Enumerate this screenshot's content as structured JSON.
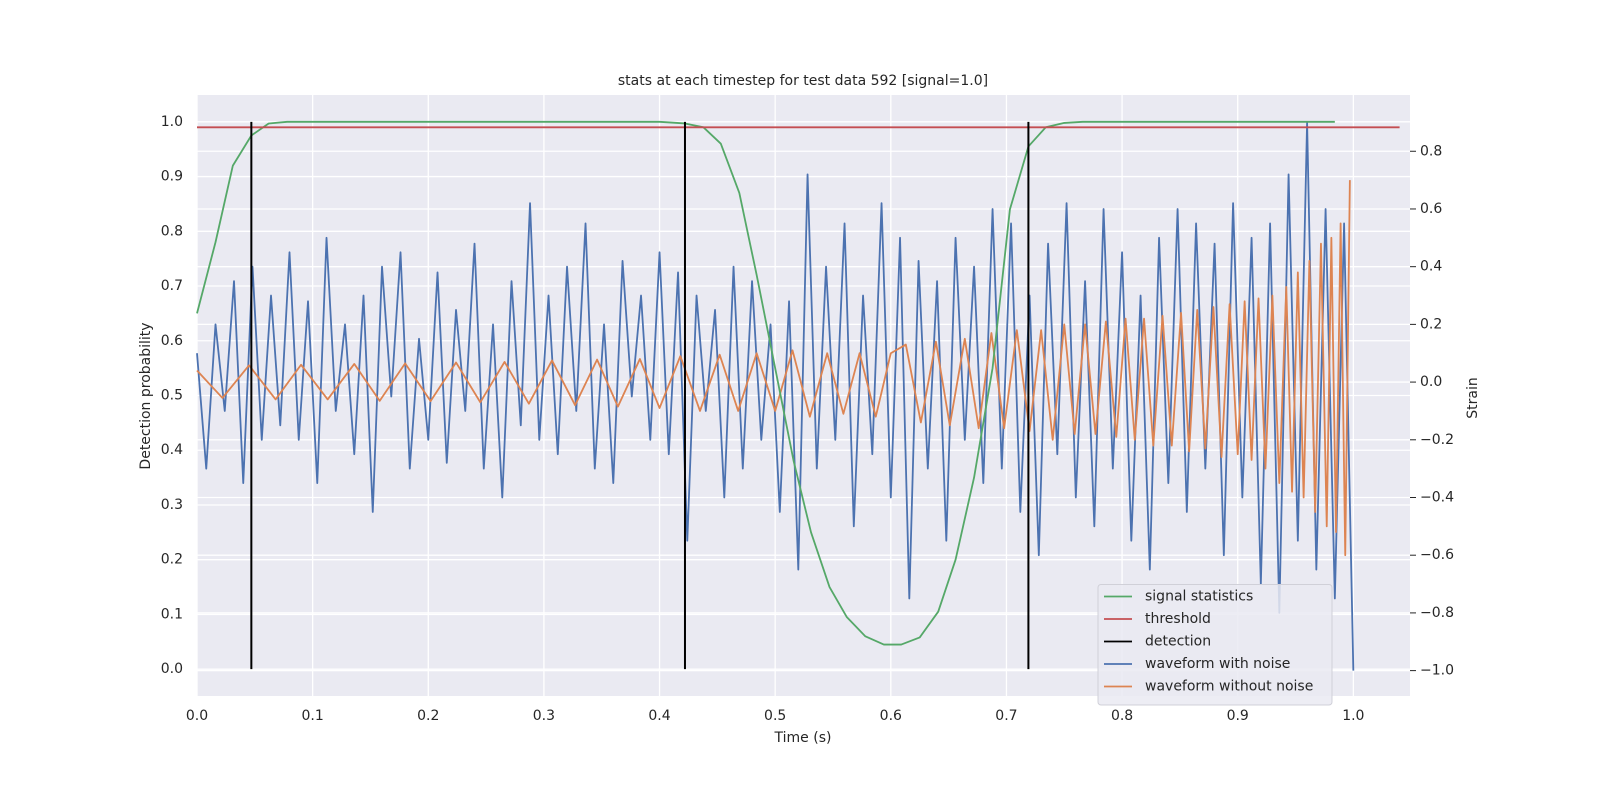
{
  "chart_data": {
    "type": "line",
    "title": "stats at each timestep for test data 592 [signal=1.0]",
    "xlabel": "Time (s)",
    "ylabel": "Detection probability",
    "y2label": "Strain",
    "xlim": [
      0,
      1.049
    ],
    "ylim": [
      -0.049,
      1.049
    ],
    "y2lim": [
      -1.088,
      0.995
    ],
    "xticks": [
      {
        "value": 0,
        "label": "0.0"
      },
      {
        "value": 0.1,
        "label": "0.1"
      },
      {
        "value": 0.2,
        "label": "0.2"
      },
      {
        "value": 0.3,
        "label": "0.3"
      },
      {
        "value": 0.4,
        "label": "0.4"
      },
      {
        "value": 0.5,
        "label": "0.5"
      },
      {
        "value": 0.6,
        "label": "0.6"
      },
      {
        "value": 0.7,
        "label": "0.7"
      },
      {
        "value": 0.8,
        "label": "0.8"
      },
      {
        "value": 0.9,
        "label": "0.9"
      },
      {
        "value": 1,
        "label": "1.0"
      }
    ],
    "yticks": [
      {
        "value": 0,
        "label": "0.0"
      },
      {
        "value": 0.1,
        "label": "0.1"
      },
      {
        "value": 0.2,
        "label": "0.2"
      },
      {
        "value": 0.3,
        "label": "0.3"
      },
      {
        "value": 0.4,
        "label": "0.4"
      },
      {
        "value": 0.5,
        "label": "0.5"
      },
      {
        "value": 0.6,
        "label": "0.6"
      },
      {
        "value": 0.7,
        "label": "0.7"
      },
      {
        "value": 0.8,
        "label": "0.8"
      },
      {
        "value": 0.9,
        "label": "0.9"
      },
      {
        "value": 1,
        "label": "1.0"
      }
    ],
    "y2ticks": [
      {
        "value": -1,
        "label": "−1.0"
      },
      {
        "value": -0.8,
        "label": "−0.8"
      },
      {
        "value": -0.6,
        "label": "−0.6"
      },
      {
        "value": -0.4,
        "label": "−0.4"
      },
      {
        "value": -0.2,
        "label": "−0.2"
      },
      {
        "value": 0,
        "label": "0.0"
      },
      {
        "value": 0.2,
        "label": "0.2"
      },
      {
        "value": 0.4,
        "label": "0.4"
      },
      {
        "value": 0.6,
        "label": "0.6"
      },
      {
        "value": 0.8,
        "label": "0.8"
      }
    ],
    "grid": true,
    "legend": "lower right",
    "series": [
      {
        "name": "signal statistics",
        "color": "#55a868",
        "x": [
          0,
          0.016,
          0.031,
          0.047,
          0.062,
          0.078,
          0.4,
          0.422,
          0.438,
          0.453,
          0.469,
          0.484,
          0.5,
          0.516,
          0.531,
          0.547,
          0.562,
          0.578,
          0.594,
          0.609,
          0.625,
          0.641,
          0.656,
          0.672,
          0.688,
          0.703,
          0.719,
          0.734,
          0.75,
          0.766,
          0.984
        ],
        "values": [
          0.65,
          0.78,
          0.92,
          0.975,
          0.997,
          1.0,
          1.0,
          0.997,
          0.99,
          0.96,
          0.87,
          0.72,
          0.55,
          0.38,
          0.25,
          0.15,
          0.095,
          0.06,
          0.045,
          0.045,
          0.058,
          0.105,
          0.2,
          0.35,
          0.55,
          0.84,
          0.955,
          0.99,
          0.998,
          1.0,
          1.0
        ]
      },
      {
        "name": "threshold",
        "color": "#c44e52",
        "x": [
          0,
          1.04
        ],
        "values": [
          0.99,
          0.99
        ]
      },
      {
        "name": "detection",
        "color": "#000000",
        "style": "vlines",
        "x": [
          0.047,
          0.422,
          0.719
        ],
        "ymin": 0,
        "ymax": 1
      },
      {
        "name": "waveform with noise",
        "color": "#4c72b0",
        "axis": "y2",
        "x": [
          0,
          0.008,
          0.016,
          0.024,
          0.032,
          0.04,
          0.048,
          0.056,
          0.064,
          0.072,
          0.08,
          0.088,
          0.096,
          0.104,
          0.112,
          0.12,
          0.128,
          0.136,
          0.144,
          0.152,
          0.16,
          0.168,
          0.176,
          0.184,
          0.192,
          0.2,
          0.208,
          0.216,
          0.224,
          0.232,
          0.24,
          0.248,
          0.256,
          0.264,
          0.272,
          0.28,
          0.288,
          0.296,
          0.304,
          0.312,
          0.32,
          0.328,
          0.336,
          0.344,
          0.352,
          0.36,
          0.368,
          0.376,
          0.384,
          0.392,
          0.4,
          0.408,
          0.416,
          0.424,
          0.432,
          0.44,
          0.448,
          0.456,
          0.464,
          0.472,
          0.48,
          0.488,
          0.496,
          0.504,
          0.512,
          0.52,
          0.528,
          0.536,
          0.544,
          0.552,
          0.56,
          0.568,
          0.576,
          0.584,
          0.592,
          0.6,
          0.608,
          0.616,
          0.624,
          0.632,
          0.64,
          0.648,
          0.656,
          0.664,
          0.672,
          0.68,
          0.688,
          0.696,
          0.704,
          0.712,
          0.72,
          0.728,
          0.736,
          0.744,
          0.752,
          0.76,
          0.768,
          0.776,
          0.784,
          0.792,
          0.8,
          0.808,
          0.816,
          0.824,
          0.832,
          0.84,
          0.848,
          0.856,
          0.864,
          0.872,
          0.88,
          0.888,
          0.896,
          0.904,
          0.912,
          0.92,
          0.928,
          0.936,
          0.944,
          0.952,
          0.96,
          0.968,
          0.976,
          0.984,
          0.992,
          1.0
        ],
        "values": [
          0.1,
          -0.3,
          0.2,
          -0.1,
          0.35,
          -0.35,
          0.4,
          -0.2,
          0.3,
          -0.15,
          0.45,
          -0.2,
          0.28,
          -0.35,
          0.5,
          -0.1,
          0.2,
          -0.25,
          0.3,
          -0.45,
          0.4,
          -0.05,
          0.45,
          -0.3,
          0.15,
          -0.2,
          0.38,
          -0.28,
          0.25,
          -0.1,
          0.48,
          -0.3,
          0.2,
          -0.4,
          0.35,
          -0.15,
          0.62,
          -0.2,
          0.3,
          -0.25,
          0.4,
          -0.1,
          0.55,
          -0.3,
          0.2,
          -0.35,
          0.42,
          -0.05,
          0.3,
          -0.2,
          0.45,
          -0.25,
          0.38,
          -0.55,
          0.3,
          -0.1,
          0.25,
          -0.4,
          0.4,
          -0.3,
          0.35,
          -0.2,
          0.2,
          -0.45,
          0.28,
          -0.65,
          0.72,
          -0.3,
          0.4,
          -0.2,
          0.55,
          -0.5,
          0.3,
          -0.25,
          0.62,
          -0.4,
          0.5,
          -0.75,
          0.42,
          -0.3,
          0.35,
          -0.55,
          0.5,
          -0.2,
          0.4,
          -0.35,
          0.6,
          -0.3,
          0.55,
          -0.45,
          0.3,
          -0.6,
          0.48,
          -0.25,
          0.62,
          -0.4,
          0.35,
          -0.5,
          0.6,
          -0.3,
          0.45,
          -0.55,
          0.3,
          -0.65,
          0.5,
          -0.35,
          0.6,
          -0.45,
          0.55,
          -0.3,
          0.48,
          -0.6,
          0.62,
          -0.4,
          0.5,
          -0.7,
          0.55,
          -0.8,
          0.72,
          -0.55,
          0.9,
          -0.65,
          0.6,
          -0.75,
          0.55,
          -1.0
        ]
      },
      {
        "name": "waveform without noise",
        "color": "#dd8452",
        "axis": "y2",
        "x": [
          0,
          0.022,
          0.045,
          0.068,
          0.09,
          0.113,
          0.136,
          0.158,
          0.18,
          0.202,
          0.224,
          0.245,
          0.266,
          0.287,
          0.307,
          0.327,
          0.346,
          0.364,
          0.383,
          0.4,
          0.418,
          0.435,
          0.452,
          0.468,
          0.484,
          0.5,
          0.515,
          0.53,
          0.545,
          0.559,
          0.573,
          0.587,
          0.6,
          0.613,
          0.626,
          0.639,
          0.651,
          0.664,
          0.676,
          0.687,
          0.698,
          0.709,
          0.72,
          0.73,
          0.74,
          0.75,
          0.759,
          0.768,
          0.777,
          0.786,
          0.795,
          0.803,
          0.811,
          0.819,
          0.827,
          0.835,
          0.843,
          0.851,
          0.858,
          0.865,
          0.872,
          0.879,
          0.886,
          0.893,
          0.9,
          0.906,
          0.912,
          0.918,
          0.924,
          0.93,
          0.936,
          0.942,
          0.947,
          0.952,
          0.957,
          0.962,
          0.967,
          0.972,
          0.977,
          0.981,
          0.985,
          0.989,
          0.993,
          0.997
        ],
        "values": [
          0.04,
          -0.055,
          0.058,
          -0.06,
          0.06,
          -0.06,
          0.063,
          -0.065,
          0.065,
          -0.066,
          0.068,
          -0.07,
          0.07,
          -0.075,
          0.075,
          -0.08,
          0.078,
          -0.085,
          0.08,
          -0.09,
          0.09,
          -0.1,
          0.095,
          -0.1,
          0.1,
          -0.1,
          0.11,
          -0.12,
          0.1,
          -0.11,
          0.1,
          -0.12,
          0.1,
          0.13,
          -0.14,
          0.14,
          -0.15,
          0.15,
          -0.16,
          0.17,
          -0.16,
          0.18,
          -0.17,
          0.18,
          -0.2,
          0.2,
          -0.18,
          0.2,
          -0.18,
          0.21,
          -0.19,
          0.22,
          -0.2,
          0.22,
          -0.22,
          0.23,
          -0.22,
          0.24,
          -0.24,
          0.25,
          -0.23,
          0.26,
          -0.26,
          0.27,
          -0.25,
          0.28,
          -0.27,
          0.29,
          -0.3,
          0.3,
          -0.35,
          0.33,
          -0.38,
          0.38,
          -0.4,
          0.42,
          -0.45,
          0.48,
          -0.5,
          0.5,
          -0.52,
          0.55,
          -0.6,
          0.7
        ]
      }
    ]
  }
}
